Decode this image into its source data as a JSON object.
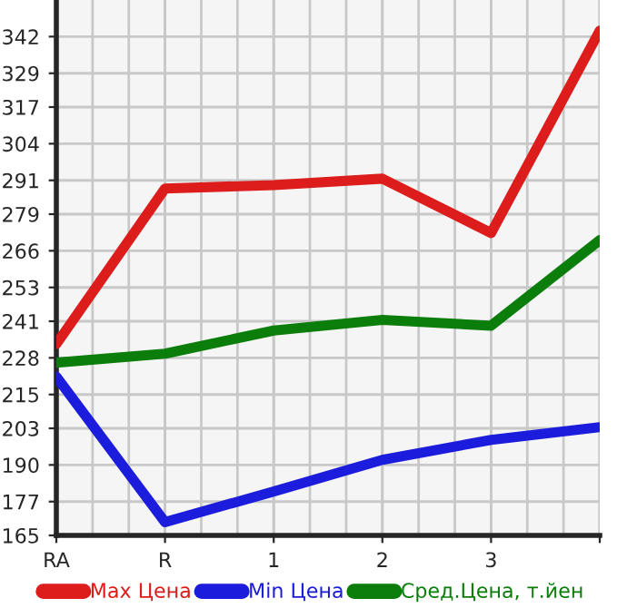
{
  "chart_data": {
    "type": "line",
    "categories": [
      "RA",
      "R",
      "1",
      "2",
      "3",
      null
    ],
    "series": [
      {
        "name": "Max Цена",
        "color": "#dd1c1c",
        "values": [
          232.9,
          288.1,
          289.3,
          291.6,
          272.3,
          344.1
        ]
      },
      {
        "name": "Min Цена",
        "color": "#1c1cdd",
        "values": [
          221.3,
          169.7,
          180.6,
          191.8,
          198.9,
          203.4
        ]
      },
      {
        "name": "Сред.Цена, т.йен",
        "color": "#0a7d0a",
        "values": [
          226.3,
          229.5,
          237.7,
          241.5,
          239.4,
          269.8
        ]
      }
    ],
    "ylim": [
      165,
      355
    ],
    "yticks": [
      165,
      177,
      190,
      203,
      215,
      228,
      241,
      253,
      266,
      279,
      291,
      304,
      317,
      329,
      342
    ],
    "grid": true,
    "legend": "bottom",
    "marker": "none",
    "line_style": "solid"
  }
}
